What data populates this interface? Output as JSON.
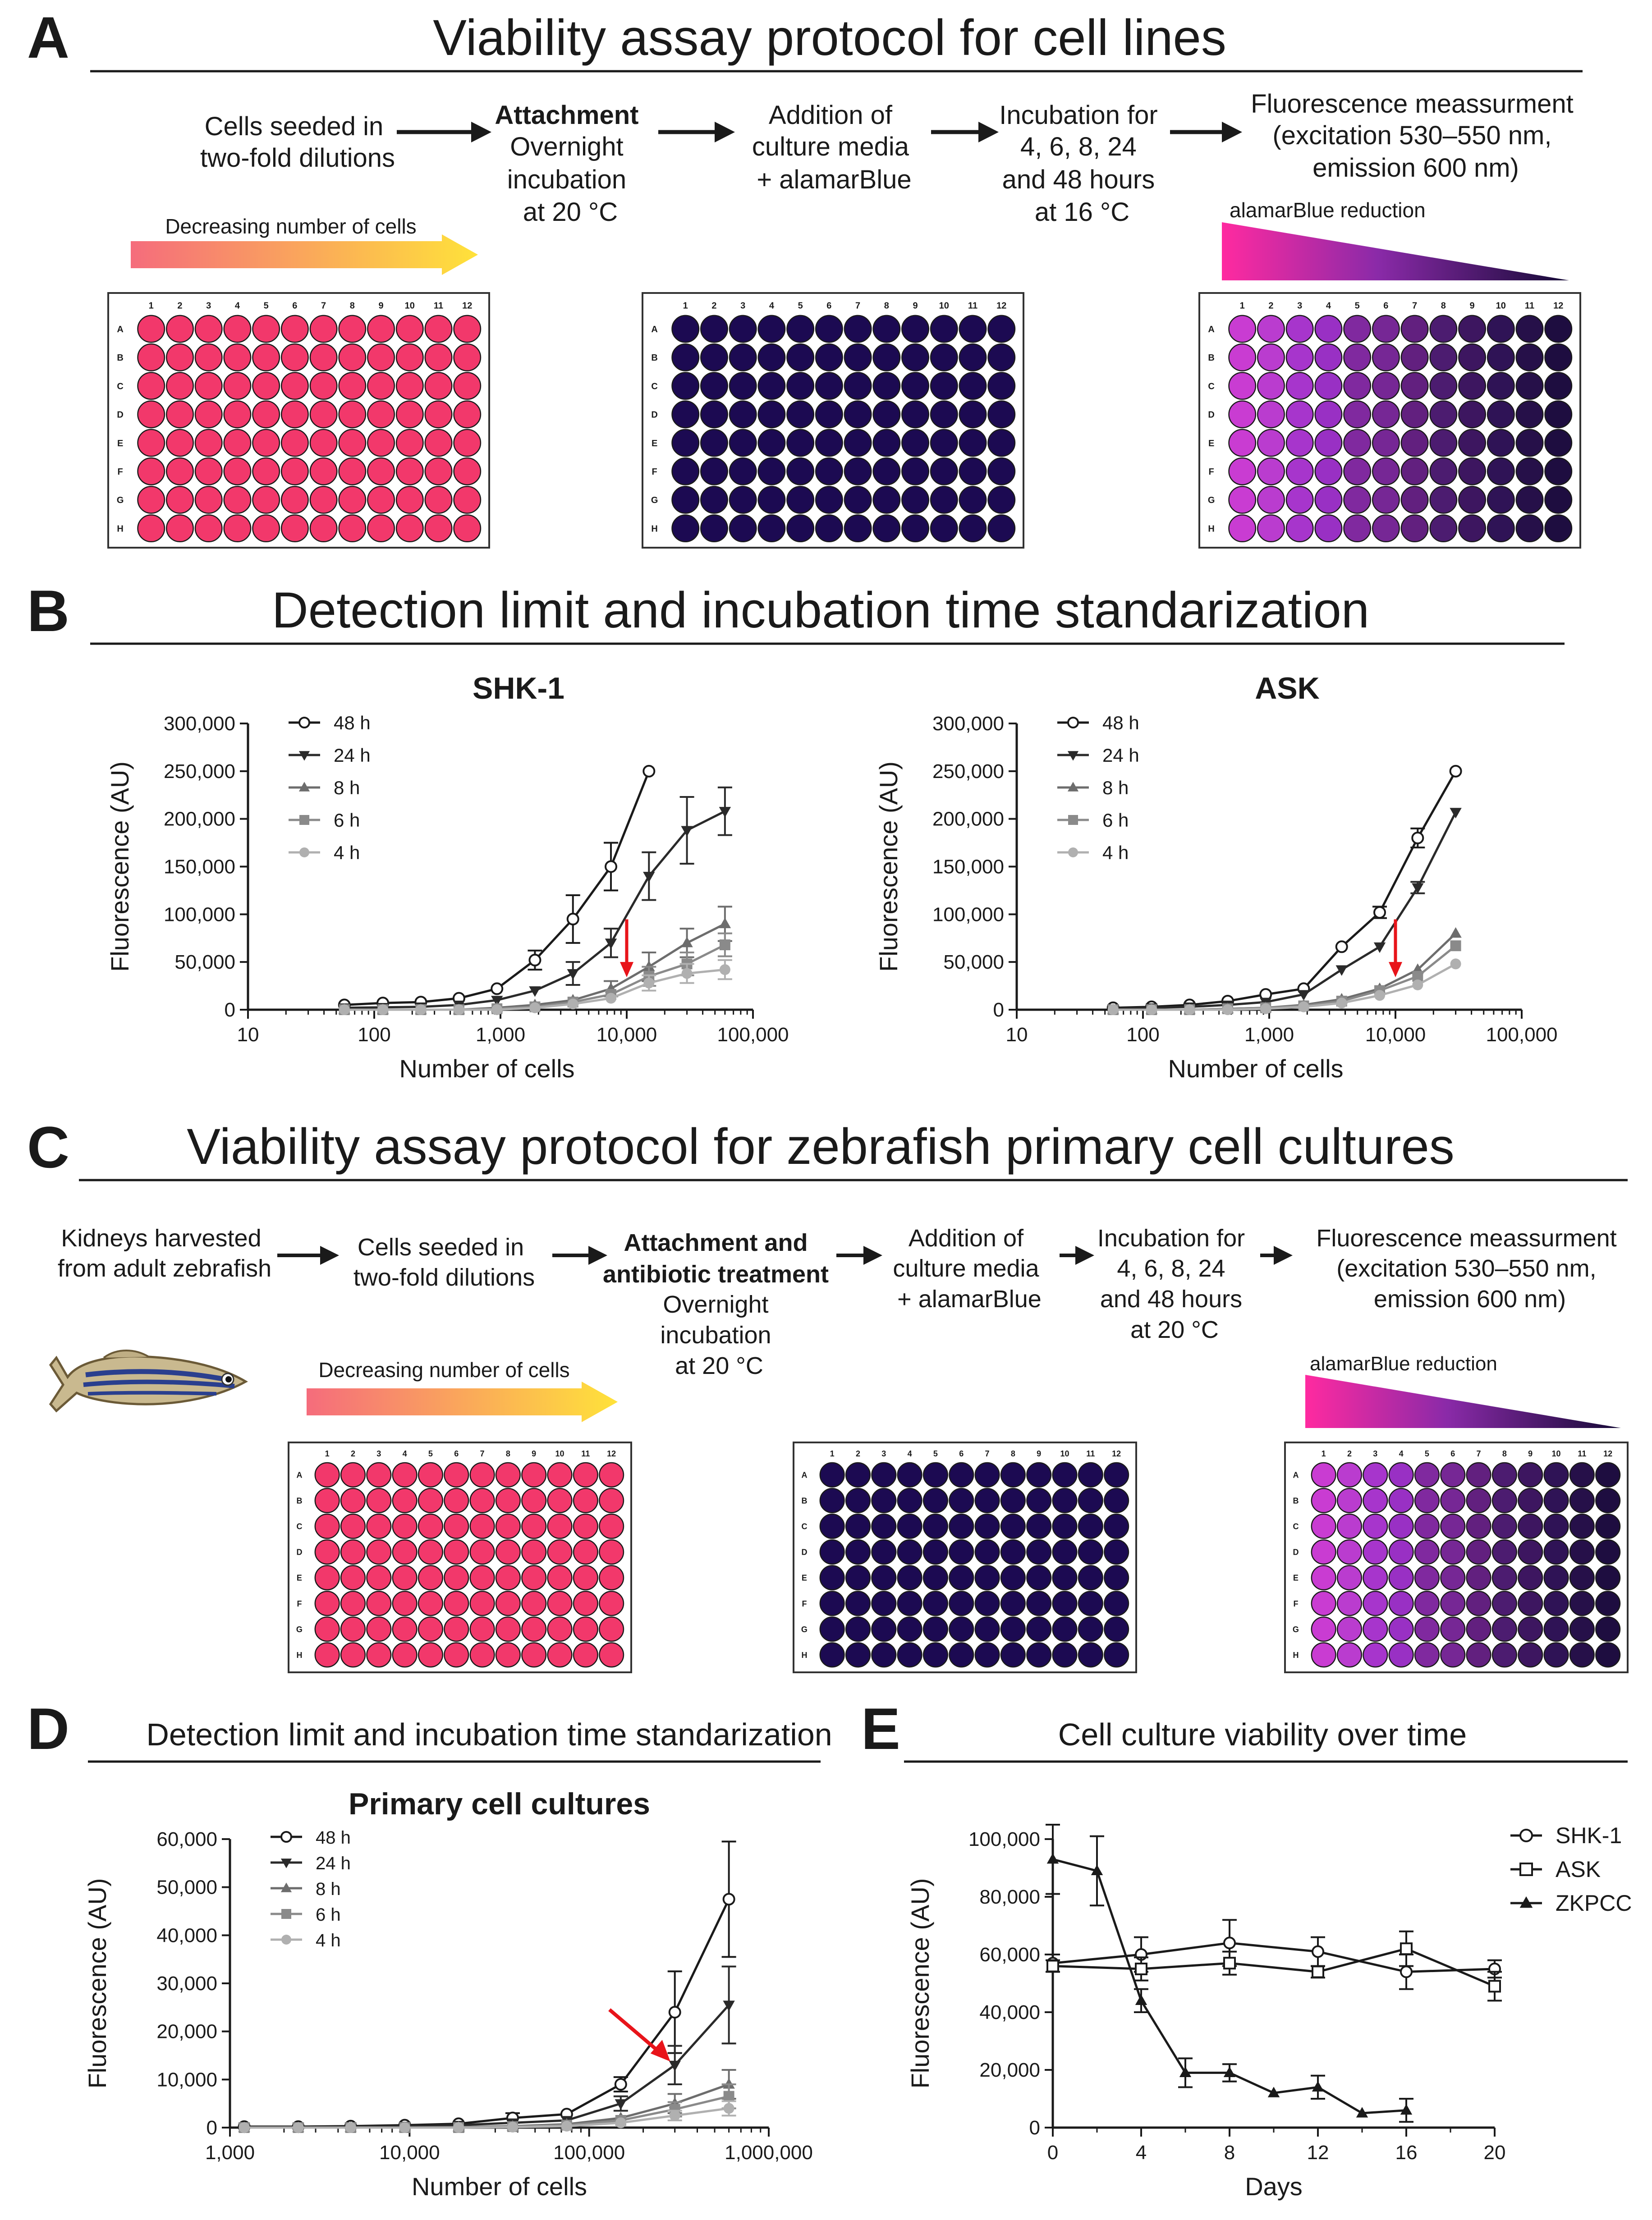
{
  "colors": {
    "seeded": "#f2386b",
    "dark_well": "#1c0a52",
    "reduction_start": "#ff2aa0",
    "reduction_end": "#150a36",
    "arrow_red": "#e8141a",
    "gradient_start": "#f56c7c",
    "gradient_end": "#ffe23a"
  },
  "well_plate": {
    "rows": [
      "A",
      "B",
      "C",
      "D",
      "E",
      "F",
      "G",
      "H"
    ],
    "columns": [
      "1",
      "2",
      "3",
      "4",
      "5",
      "6",
      "7",
      "8",
      "9",
      "10",
      "11",
      "12"
    ],
    "reduced_column_colors": [
      "#c93cd2",
      "#ba3ccf",
      "#a735cc",
      "#9930c4",
      "#80299f",
      "#762795",
      "#62207f",
      "#4c1c70",
      "#3d1660",
      "#2f1356",
      "#261049",
      "#1e0d40"
    ]
  },
  "panel_a": {
    "letter": "A",
    "title": "Viability assay protocol for cell lines",
    "steps": [
      {
        "lines": [
          "Cells seeded in",
          "two-fold dilutions"
        ]
      },
      {
        "bold": "Attachment",
        "lines": [
          "Overnight",
          "incubation",
          "at 20 °C"
        ]
      },
      {
        "lines": [
          "Addition of",
          "culture media",
          "+ alamarBlue"
        ]
      },
      {
        "lines": [
          "Incubation for",
          "4, 6, 8, 24",
          "and 48 hours",
          "at 16 °C"
        ]
      },
      {
        "lines": [
          "Fluorescence meassurment",
          "(excitation 530–550 nm,",
          "emission 600 nm)"
        ]
      }
    ],
    "decreasing_label": "Decreasing number of cells",
    "reduction_label": "alamarBlue reduction"
  },
  "panel_b": {
    "letter": "B",
    "title": "Detection limit and incubation time standarization"
  },
  "panel_c": {
    "letter": "C",
    "title": "Viability assay protocol for zebrafish primary cell cultures",
    "steps": [
      {
        "lines": [
          "Kidneys harvested",
          "from adult zebrafish"
        ]
      },
      {
        "lines": [
          "Cells seeded in",
          "two-fold dilutions"
        ]
      },
      {
        "bold_lines": [
          "Attachment and",
          "antibiotic treatment"
        ],
        "lines": [
          "Overnight",
          "incubation",
          "at 20 °C"
        ]
      },
      {
        "lines": [
          "Addition of",
          "culture media",
          "+ alamarBlue"
        ]
      },
      {
        "lines": [
          "Incubation for",
          "4, 6, 8, 24",
          "and 48 hours",
          "at 20 °C"
        ]
      },
      {
        "lines": [
          "Fluorescence meassurment",
          "(excitation 530–550 nm,",
          "emission 600 nm)"
        ]
      }
    ],
    "decreasing_label": "Decreasing number of cells",
    "reduction_label": "alamarBlue reduction"
  },
  "panel_d": {
    "letter": "D",
    "title": "Detection limit and incubation time standarization"
  },
  "panel_e": {
    "letter": "E",
    "title": "Cell culture viability over time"
  },
  "chart_data": [
    {
      "id": "shk1",
      "type": "line",
      "title": "SHK-1",
      "xlabel": "Number of cells",
      "ylabel": "Fluorescence (AU)",
      "xscale": "log",
      "xlim": [
        10,
        100000
      ],
      "ylim": [
        0,
        300000
      ],
      "xticks": [
        10,
        100,
        1000,
        10000,
        100000
      ],
      "xtick_labels": [
        "10",
        "100",
        "1,000",
        "10,000",
        "100,000"
      ],
      "yticks": [
        0,
        50000,
        100000,
        150000,
        200000,
        250000,
        300000
      ],
      "ytick_labels": [
        "0",
        "50,000",
        "100,000",
        "150,000",
        "200,000",
        "250,000",
        "300,000"
      ],
      "legend_position": "top-left",
      "detection_arrow_x": 10000,
      "series": [
        {
          "name": "48 h",
          "marker": "open-circle",
          "color": "#1a1a1a",
          "x": [
            58,
            117,
            234,
            469,
            938,
            1875,
            3750,
            7500,
            15000
          ],
          "y": [
            5000,
            7000,
            8000,
            12000,
            22000,
            52000,
            95000,
            150000,
            250000
          ],
          "err": [
            0,
            0,
            0,
            0,
            0,
            10000,
            25000,
            25000,
            0
          ]
        },
        {
          "name": "24 h",
          "marker": "down-triangle",
          "color": "#2a2a2a",
          "x": [
            58,
            117,
            234,
            469,
            938,
            1875,
            3750,
            7500,
            15000,
            30000,
            60000
          ],
          "y": [
            2000,
            2500,
            3000,
            5000,
            10000,
            20000,
            38000,
            70000,
            140000,
            188000,
            208000
          ],
          "err": [
            0,
            0,
            0,
            0,
            0,
            0,
            12000,
            15000,
            25000,
            35000,
            25000
          ]
        },
        {
          "name": "8 h",
          "marker": "up-triangle",
          "color": "#6d6d6d",
          "x": [
            58,
            117,
            234,
            469,
            938,
            1875,
            3750,
            7500,
            15000,
            30000,
            60000
          ],
          "y": [
            0,
            0,
            0,
            0,
            2000,
            5000,
            10000,
            22000,
            45000,
            70000,
            90000
          ],
          "err": [
            0,
            0,
            0,
            0,
            0,
            0,
            0,
            8000,
            15000,
            15000,
            18000
          ]
        },
        {
          "name": "6 h",
          "marker": "square",
          "color": "#8a8a8a",
          "x": [
            58,
            117,
            234,
            469,
            938,
            1875,
            3750,
            7500,
            15000,
            30000,
            60000
          ],
          "y": [
            0,
            0,
            0,
            0,
            1000,
            3000,
            8000,
            16000,
            35000,
            48000,
            68000
          ],
          "err": [
            0,
            0,
            0,
            0,
            0,
            0,
            0,
            0,
            10000,
            12000,
            12000
          ]
        },
        {
          "name": "4 h",
          "marker": "circle",
          "color": "#b0b0b0",
          "x": [
            58,
            117,
            234,
            469,
            938,
            1875,
            3750,
            7500,
            15000,
            30000,
            60000
          ],
          "y": [
            0,
            0,
            0,
            0,
            0,
            2000,
            6000,
            12000,
            28000,
            38000,
            42000
          ],
          "err": [
            0,
            0,
            0,
            0,
            0,
            0,
            0,
            0,
            8000,
            10000,
            10000
          ]
        }
      ]
    },
    {
      "id": "ask",
      "type": "line",
      "title": "ASK",
      "xlabel": "Number of cells",
      "ylabel": "Fluorescence (AU)",
      "xscale": "log",
      "xlim": [
        10,
        100000
      ],
      "ylim": [
        0,
        300000
      ],
      "xticks": [
        10,
        100,
        1000,
        10000,
        100000
      ],
      "xtick_labels": [
        "10",
        "100",
        "1,000",
        "10,000",
        "100,000"
      ],
      "yticks": [
        0,
        50000,
        100000,
        150000,
        200000,
        250000,
        300000
      ],
      "ytick_labels": [
        "0",
        "50,000",
        "100,000",
        "150,000",
        "200,000",
        "250,000",
        "300,000"
      ],
      "legend_position": "top-left",
      "detection_arrow_x": 10000,
      "series": [
        {
          "name": "48 h",
          "marker": "open-circle",
          "color": "#1a1a1a",
          "x": [
            58,
            117,
            234,
            469,
            938,
            1875,
            3750,
            7500,
            15000,
            30000
          ],
          "y": [
            2000,
            3000,
            5000,
            9000,
            16000,
            22000,
            66000,
            102000,
            180000,
            250000
          ],
          "err": [
            0,
            0,
            0,
            0,
            0,
            0,
            0,
            6000,
            10000,
            0
          ]
        },
        {
          "name": "24 h",
          "marker": "down-triangle",
          "color": "#2a2a2a",
          "x": [
            58,
            117,
            234,
            469,
            938,
            1875,
            3750,
            7500,
            15000,
            30000
          ],
          "y": [
            1000,
            2000,
            3000,
            5000,
            8000,
            16000,
            42000,
            66000,
            128000,
            207000
          ],
          "err": [
            0,
            0,
            0,
            0,
            0,
            0,
            0,
            0,
            6000,
            0
          ]
        },
        {
          "name": "8 h",
          "marker": "up-triangle",
          "color": "#6d6d6d",
          "x": [
            58,
            117,
            234,
            469,
            938,
            1875,
            3750,
            7500,
            15000,
            30000
          ],
          "y": [
            0,
            0,
            0,
            1000,
            2000,
            5000,
            11000,
            22000,
            42000,
            80000
          ],
          "err": [
            0,
            0,
            0,
            0,
            0,
            0,
            0,
            0,
            0,
            0
          ]
        },
        {
          "name": "6 h",
          "marker": "square",
          "color": "#8a8a8a",
          "x": [
            58,
            117,
            234,
            469,
            938,
            1875,
            3750,
            7500,
            15000,
            30000
          ],
          "y": [
            0,
            0,
            0,
            1000,
            2000,
            4000,
            9000,
            20000,
            35000,
            67000
          ],
          "err": [
            0,
            0,
            0,
            0,
            0,
            0,
            0,
            0,
            0,
            0
          ]
        },
        {
          "name": "4 h",
          "marker": "circle",
          "color": "#b0b0b0",
          "x": [
            58,
            117,
            234,
            469,
            938,
            1875,
            3750,
            7500,
            15000,
            30000
          ],
          "y": [
            0,
            0,
            0,
            0,
            1000,
            3000,
            7000,
            15000,
            26000,
            48000
          ],
          "err": [
            0,
            0,
            0,
            0,
            0,
            0,
            0,
            0,
            0,
            0
          ]
        }
      ]
    },
    {
      "id": "primary",
      "type": "line",
      "title": "Primary cell cultures",
      "xlabel": "Number of cells",
      "ylabel": "Fluorescence (AU)",
      "xscale": "log",
      "xlim": [
        1000,
        1000000
      ],
      "ylim": [
        0,
        60000
      ],
      "xticks": [
        1000,
        10000,
        100000,
        1000000
      ],
      "xtick_labels": [
        "1,000",
        "10,000",
        "100,000",
        "1,000,000"
      ],
      "yticks": [
        0,
        10000,
        20000,
        30000,
        40000,
        50000,
        60000
      ],
      "ytick_labels": [
        "0",
        "10,000",
        "20,000",
        "30,000",
        "40,000",
        "50,000",
        "60,000"
      ],
      "legend_position": "top-left",
      "detection_arrow_target": [
        300000,
        13000
      ],
      "series": [
        {
          "name": "48 h",
          "marker": "open-circle",
          "color": "#1a1a1a",
          "x": [
            1200,
            2400,
            4700,
            9400,
            18750,
            37500,
            75000,
            150000,
            300000,
            600000
          ],
          "y": [
            200,
            200,
            300,
            500,
            800,
            2000,
            2800,
            9000,
            24000,
            47500
          ],
          "err": [
            0,
            0,
            0,
            0,
            0,
            1000,
            0,
            1500,
            8500,
            12000
          ]
        },
        {
          "name": "24 h",
          "marker": "down-triangle",
          "color": "#2a2a2a",
          "x": [
            1200,
            2400,
            4700,
            9400,
            18750,
            37500,
            75000,
            150000,
            300000,
            600000
          ],
          "y": [
            100,
            100,
            200,
            300,
            500,
            1000,
            1500,
            5000,
            13000,
            25500
          ],
          "err": [
            0,
            0,
            0,
            0,
            0,
            0,
            0,
            1500,
            4000,
            8000
          ]
        },
        {
          "name": "8 h",
          "marker": "up-triangle",
          "color": "#6d6d6d",
          "x": [
            1200,
            2400,
            4700,
            9400,
            18750,
            37500,
            75000,
            150000,
            300000,
            600000
          ],
          "y": [
            0,
            0,
            0,
            0,
            100,
            300,
            700,
            2000,
            5000,
            9000
          ],
          "err": [
            0,
            0,
            0,
            0,
            0,
            0,
            0,
            0,
            2000,
            3000
          ]
        },
        {
          "name": "6 h",
          "marker": "square",
          "color": "#8a8a8a",
          "x": [
            1200,
            2400,
            4700,
            9400,
            18750,
            37500,
            75000,
            150000,
            300000,
            600000
          ],
          "y": [
            0,
            0,
            0,
            0,
            0,
            200,
            500,
            1500,
            3800,
            6500
          ],
          "err": [
            0,
            0,
            0,
            0,
            0,
            0,
            0,
            0,
            1500,
            2500
          ]
        },
        {
          "name": "4 h",
          "marker": "circle",
          "color": "#b0b0b0",
          "x": [
            1200,
            2400,
            4700,
            9400,
            18750,
            37500,
            75000,
            150000,
            300000,
            600000
          ],
          "y": [
            0,
            0,
            0,
            0,
            0,
            100,
            300,
            1000,
            2500,
            4000
          ],
          "err": [
            0,
            0,
            0,
            0,
            0,
            0,
            0,
            0,
            1000,
            1500
          ]
        }
      ]
    },
    {
      "id": "viability",
      "type": "line",
      "title": "Cell culture viability over time",
      "xlabel": "Days",
      "ylabel": "Fluorescence (AU)",
      "xscale": "linear",
      "xlim": [
        0,
        20
      ],
      "ylim": [
        0,
        100000
      ],
      "xticks": [
        0,
        4,
        8,
        12,
        16,
        20
      ],
      "xtick_labels": [
        "0",
        "4",
        "8",
        "12",
        "16",
        "20"
      ],
      "yticks": [
        0,
        20000,
        40000,
        60000,
        80000,
        100000
      ],
      "ytick_labels": [
        "0",
        "20,000",
        "40,000",
        "60,000",
        "80,000",
        "100,000"
      ],
      "legend_position": "top-right",
      "series": [
        {
          "name": "SHK-1",
          "marker": "open-circle",
          "color": "#1a1a1a",
          "x": [
            0,
            4,
            8,
            12,
            16,
            20
          ],
          "y": [
            57000,
            60000,
            64000,
            61000,
            54000,
            55000
          ],
          "err": [
            3000,
            6000,
            8000,
            5000,
            6000,
            3000
          ]
        },
        {
          "name": "ASK",
          "marker": "open-square",
          "color": "#1a1a1a",
          "x": [
            0,
            4,
            8,
            12,
            16,
            20
          ],
          "y": [
            56000,
            55000,
            57000,
            54000,
            62000,
            49000
          ],
          "err": [
            2000,
            4000,
            4000,
            2000,
            6000,
            5000
          ]
        },
        {
          "name": "ZKPCC",
          "marker": "up-triangle",
          "color": "#1a1a1a",
          "x": [
            0,
            2,
            4,
            6,
            8,
            10,
            12,
            14,
            16
          ],
          "y": [
            93000,
            89000,
            44000,
            19000,
            19000,
            12000,
            14000,
            5000,
            6000
          ],
          "err": [
            12000,
            12000,
            4000,
            5000,
            3000,
            0,
            4000,
            0,
            4000
          ]
        }
      ]
    }
  ]
}
